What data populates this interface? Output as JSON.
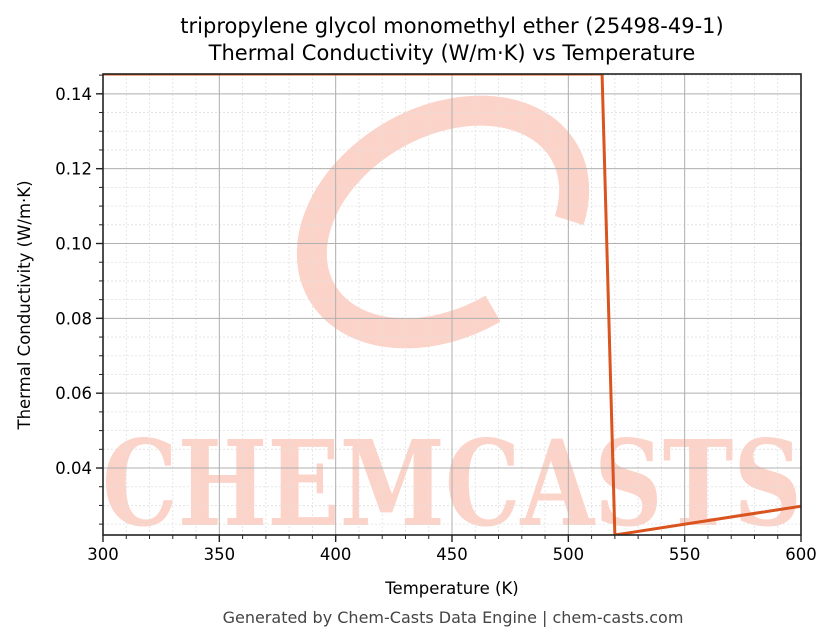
{
  "header": {
    "title_line1": "tripropylene glycol monomethyl ether (25498-49-1)",
    "title_line2": "Thermal Conductivity (W/m·K) vs Temperature"
  },
  "axes": {
    "xlabel": "Temperature (K)",
    "ylabel": "Thermal Conductivity (W/m·K)",
    "x_ticks": [
      "300",
      "350",
      "400",
      "450",
      "500",
      "550",
      "600"
    ],
    "y_ticks": [
      "0.04",
      "0.06",
      "0.08",
      "0.10",
      "0.12",
      "0.14"
    ]
  },
  "watermark": {
    "text": "CHEMCASTS",
    "color": "#fcd3c8"
  },
  "footer": {
    "text": "Generated by Chem-Casts Data Engine | chem-casts.com"
  },
  "colors": {
    "line": "#d9541e",
    "grid_major": "#b0b0b0",
    "grid_minor": "#e0e0e0"
  },
  "chart_data": {
    "type": "line",
    "title": "tripropylene glycol monomethyl ether (25498-49-1) Thermal Conductivity (W/m·K) vs Temperature",
    "xlabel": "Temperature (K)",
    "ylabel": "Thermal Conductivity (W/m·K)",
    "xlim": [
      300,
      600
    ],
    "ylim": [
      0.0221,
      0.1453
    ],
    "x_ticks": [
      300,
      350,
      400,
      450,
      500,
      550,
      600
    ],
    "y_ticks": [
      0.04,
      0.06,
      0.08,
      0.1,
      0.12,
      0.14
    ],
    "grid": true,
    "legend": null,
    "series": [
      {
        "name": "Thermal Conductivity",
        "color": "#d9541e",
        "x": [
          300,
          514.5,
          520,
          600
        ],
        "y": [
          0.1453,
          0.1453,
          0.0221,
          0.0298
        ]
      }
    ]
  }
}
